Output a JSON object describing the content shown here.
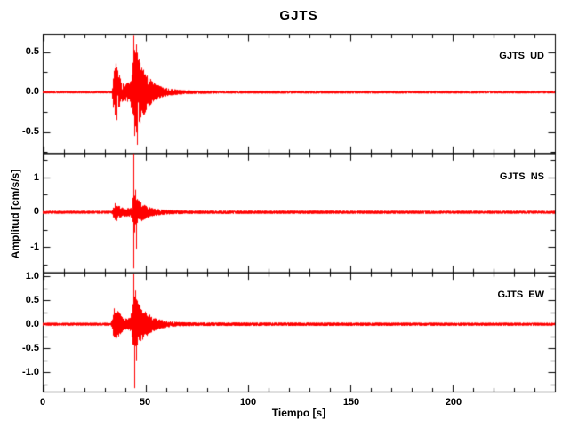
{
  "window": {
    "background": "#ffffff"
  },
  "chart_data": {
    "type": "line",
    "title": "GJTS",
    "xlabel": "Tiempo [s]",
    "ylabel": "Amplitud [cm/s/s]",
    "grid": false,
    "legend_position": "inside-top-right-per-panel",
    "trace_color": "#ff0000",
    "axis_color": "#000000",
    "x_range": [
      0,
      250
    ],
    "x_major_step": 50,
    "x_minor_step": 10,
    "x_tick_labels": [
      "0",
      "50",
      "100",
      "150",
      "200"
    ],
    "series": [
      {
        "name": "GJTS  UD",
        "station": "GJTS",
        "component": "UD",
        "units": "cm/s/s",
        "ylim": [
          -0.77,
          0.73
        ],
        "y_major_step": 0.5,
        "y_minor_step": 0.25,
        "y_tick_labels": [
          "0.5",
          "0.0",
          "-0.5"
        ],
        "y_tick_values": [
          0.5,
          0.0,
          -0.5
        ],
        "noise_amplitude": 0.016,
        "p_arrival_s": 34.5,
        "s_arrival_s": 44.6,
        "peak_positive": 0.72,
        "peak_negative": -0.66,
        "seed": 11,
        "envelope": [
          [
            0,
            0.015
          ],
          [
            33.8,
            0.015
          ],
          [
            34.2,
            0.06
          ],
          [
            35,
            0.3
          ],
          [
            36.8,
            0.33
          ],
          [
            38,
            0.18
          ],
          [
            39.5,
            0.11
          ],
          [
            42.5,
            0.13
          ],
          [
            43.8,
            0.25
          ],
          [
            44.5,
            0.55
          ],
          [
            46.5,
            0.5
          ],
          [
            48,
            0.35
          ],
          [
            50,
            0.28
          ],
          [
            52,
            0.18
          ],
          [
            55,
            0.11
          ],
          [
            58,
            0.07
          ],
          [
            62,
            0.045
          ],
          [
            67,
            0.03
          ],
          [
            75,
            0.022
          ],
          [
            90,
            0.018
          ],
          [
            250,
            0.016
          ]
        ],
        "spikes": [
          [
            35.6,
            0.36
          ],
          [
            36.4,
            -0.35
          ],
          [
            44.6,
            0.72
          ],
          [
            45.0,
            -0.55
          ],
          [
            45.9,
            0.6
          ],
          [
            46.3,
            -0.66
          ]
        ]
      },
      {
        "name": "GJTS  NS",
        "station": "GJTS",
        "component": "NS",
        "units": "cm/s/s",
        "ylim": [
          -1.745,
          1.695
        ],
        "y_major_step": 1.0,
        "y_minor_step": 0.5,
        "y_tick_labels": [
          "1",
          "0",
          "-1"
        ],
        "y_tick_values": [
          1,
          0,
          -1
        ],
        "noise_amplitude": 0.045,
        "p_arrival_s": 34.3,
        "s_arrival_s": 44.4,
        "peak_positive": 1.7,
        "peak_negative": -1.62,
        "seed": 22,
        "envelope": [
          [
            0,
            0.045
          ],
          [
            33.8,
            0.045
          ],
          [
            34.3,
            0.09
          ],
          [
            35.2,
            0.24
          ],
          [
            37,
            0.2
          ],
          [
            39,
            0.13
          ],
          [
            42,
            0.12
          ],
          [
            43.9,
            0.18
          ],
          [
            44.4,
            0.75
          ],
          [
            45,
            0.55
          ],
          [
            46,
            0.42
          ],
          [
            47.5,
            0.32
          ],
          [
            49,
            0.24
          ],
          [
            51,
            0.17
          ],
          [
            54,
            0.11
          ],
          [
            58,
            0.08
          ],
          [
            63,
            0.06
          ],
          [
            70,
            0.05
          ],
          [
            250,
            0.045
          ]
        ],
        "spikes": [
          [
            35.5,
            0.26
          ],
          [
            36.2,
            -0.25
          ],
          [
            44.4,
            1.7
          ],
          [
            44.5,
            -1.62
          ],
          [
            45.2,
            0.65
          ],
          [
            45.6,
            -1.05
          ]
        ]
      },
      {
        "name": "GJTS  EW",
        "station": "GJTS",
        "component": "EW",
        "units": "cm/s/s",
        "ylim": [
          -1.41,
          1.07
        ],
        "y_major_step": 0.5,
        "y_minor_step": 0.25,
        "y_tick_labels": [
          "1.0",
          "0.5",
          "0.0",
          "-0.5",
          "-1.0"
        ],
        "y_tick_values": [
          1.0,
          0.5,
          0.0,
          -0.5,
          -1.0
        ],
        "noise_amplitude": 0.033,
        "p_arrival_s": 34.0,
        "s_arrival_s": 44.5,
        "peak_positive": 1.05,
        "peak_negative": -1.33,
        "seed": 33,
        "envelope": [
          [
            0,
            0.033
          ],
          [
            33.5,
            0.033
          ],
          [
            34,
            0.1
          ],
          [
            34.8,
            0.3
          ],
          [
            36.5,
            0.28
          ],
          [
            38,
            0.22
          ],
          [
            39.5,
            0.13
          ],
          [
            42,
            0.12
          ],
          [
            43.8,
            0.28
          ],
          [
            44.4,
            0.65
          ],
          [
            45.2,
            0.6
          ],
          [
            46.5,
            0.45
          ],
          [
            48,
            0.36
          ],
          [
            50,
            0.27
          ],
          [
            52.5,
            0.19
          ],
          [
            55,
            0.13
          ],
          [
            58,
            0.09
          ],
          [
            62,
            0.06
          ],
          [
            67,
            0.045
          ],
          [
            75,
            0.038
          ],
          [
            250,
            0.033
          ]
        ],
        "spikes": [
          [
            35.0,
            0.33
          ],
          [
            36.0,
            -0.3
          ],
          [
            44.5,
            1.05
          ],
          [
            44.8,
            -1.33
          ],
          [
            45.3,
            0.7
          ],
          [
            46.0,
            -0.75
          ]
        ]
      }
    ]
  }
}
